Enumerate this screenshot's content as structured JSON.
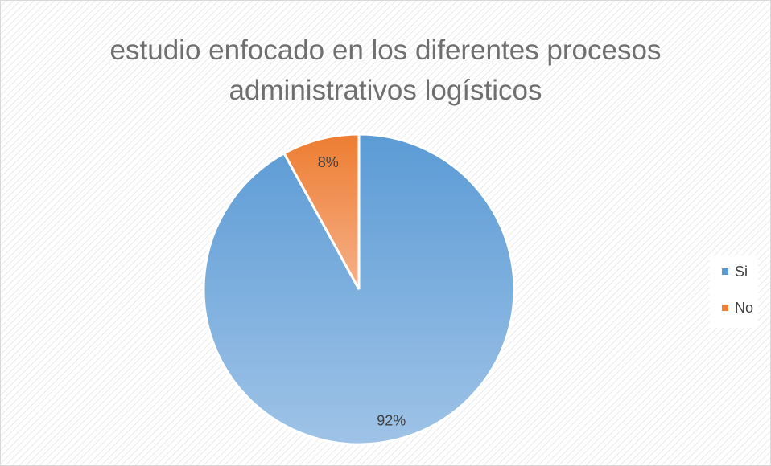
{
  "chart_data": {
    "type": "pie",
    "title": "estudio enfocado en los diferentes procesos administrativos logísticos",
    "categories": [
      "Si",
      "No"
    ],
    "values": [
      92,
      8
    ],
    "value_labels": [
      "92%",
      "8%"
    ],
    "colors": [
      "#5b9bd5",
      "#ed7d31"
    ],
    "legend": "right"
  }
}
